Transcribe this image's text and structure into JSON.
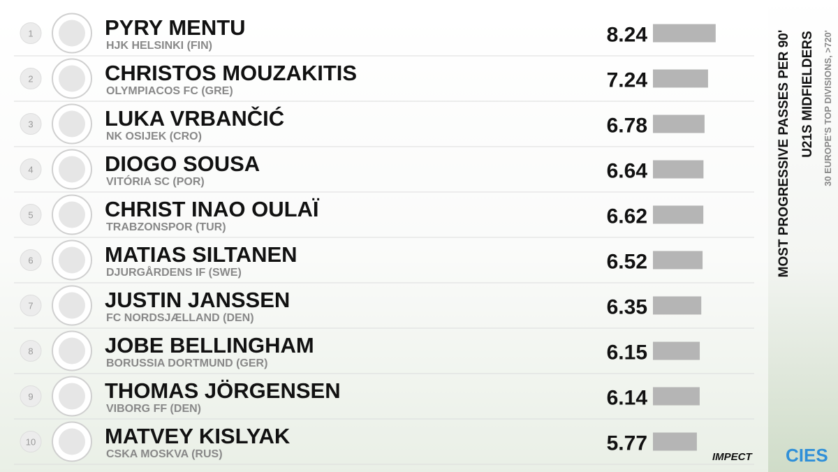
{
  "chart_data": {
    "type": "bar",
    "title": "MOST PROGRESSIVE PASSES PER 90'",
    "subtitle": "U21S MIDFIELDERS",
    "note": "30 EUROPE'S TOP DIVISIONS, >720'",
    "ranks": [
      "1",
      "2",
      "3",
      "4",
      "5",
      "6",
      "7",
      "8",
      "9",
      "10"
    ],
    "categories": [
      "PYRY MENTU",
      "CHRISTOS MOUZAKITIS",
      "LUKA VRBANČIĆ",
      "DIOGO SOUSA",
      "CHRIST INAO OULAÏ",
      "MATIAS SILTANEN",
      "JUSTIN JANSSEN",
      "JOBE BELLINGHAM",
      "THOMAS JÖRGENSEN",
      "MATVEY KISLYAK"
    ],
    "clubs": [
      "HJK HELSINKI (FIN)",
      "OLYMPIACOS FC (GRE)",
      "NK OSIJEK (CRO)",
      "VITÓRIA SC (POR)",
      "TRABZONSPOR (TUR)",
      "DJURGÅRDENS IF (SWE)",
      "FC NORDSJÆLLAND (DEN)",
      "BORUSSIA DORTMUND (GER)",
      "VIBORG FF (DEN)",
      "CSKA MOSKVA (RUS)"
    ],
    "values": [
      8.24,
      7.24,
      6.78,
      6.64,
      6.62,
      6.52,
      6.35,
      6.15,
      6.14,
      5.77
    ],
    "color": "#b5b5b5",
    "brands": [
      "IMPECT",
      "CIES"
    ]
  }
}
